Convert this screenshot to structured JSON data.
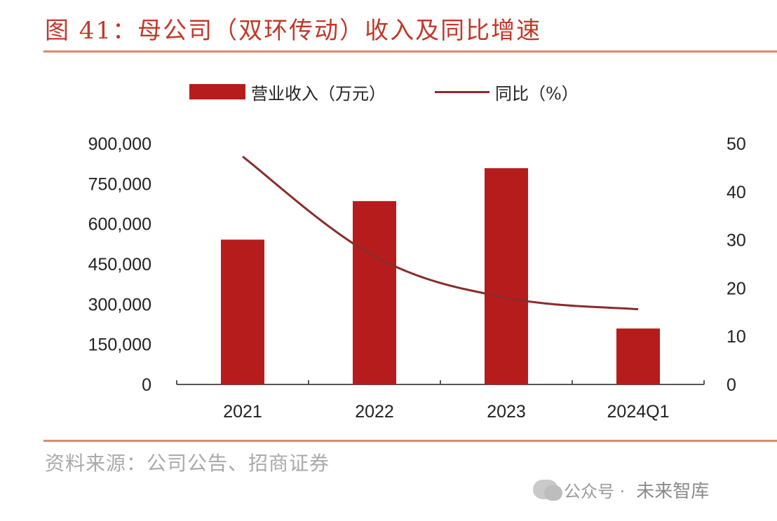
{
  "title": "图 41：母公司（双环传动）收入及同比增速",
  "legend": {
    "bar_label": "营业收入（万元）",
    "line_label": "同比（%）"
  },
  "source": "资料来源：公司公告、招商证券",
  "watermark": {
    "platform": "公众号 ·",
    "name": "未来智库"
  },
  "colors": {
    "bar": "#b71c1c",
    "line": "#8b2b2b",
    "title": "#c0392b",
    "rule": "#d98a6c"
  },
  "chart_data": {
    "type": "bar",
    "categories": [
      "2021",
      "2022",
      "2023",
      "2024Q1"
    ],
    "series": [
      {
        "name": "营业收入（万元）",
        "type": "bar",
        "axis": "left",
        "values": [
          541000,
          685000,
          808000,
          209000
        ]
      },
      {
        "name": "同比（%）",
        "type": "line",
        "axis": "right",
        "values": [
          47.3,
          26.6,
          18.0,
          15.6
        ]
      }
    ],
    "ylim": [
      0,
      900000
    ],
    "y_ticks": [
      "0",
      "150,000",
      "300,000",
      "450,000",
      "600,000",
      "750,000",
      "900,000"
    ],
    "y2lim": [
      0,
      50
    ],
    "y2_ticks": [
      "0",
      "10",
      "20",
      "30",
      "40",
      "50"
    ],
    "grid": false,
    "legend_position": "top"
  }
}
